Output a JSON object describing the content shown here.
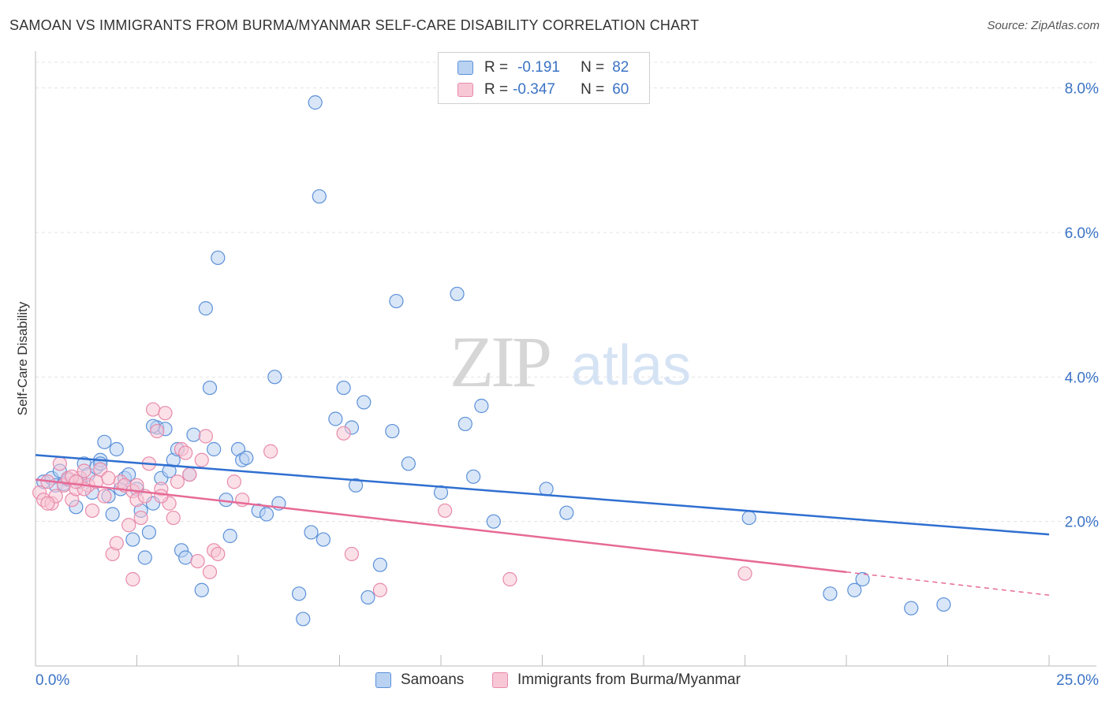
{
  "title": "SAMOAN VS IMMIGRANTS FROM BURMA/MYANMAR SELF-CARE DISABILITY CORRELATION CHART",
  "source": "Source: ZipAtlas.com",
  "watermark": {
    "zip": "ZIP",
    "atlas": "atlas"
  },
  "legend_stats": [
    {
      "r_label": "R =",
      "r_value": "-0.191",
      "n_label": "N =",
      "n_value": "82",
      "color": "#7aaae6"
    },
    {
      "r_label": "R =",
      "r_value": "-0.347",
      "n_label": "N =",
      "n_value": "60",
      "color": "#f0a0bb"
    }
  ],
  "colors": {
    "blue_fill": "#b9d2f2",
    "blue_stroke": "#5b90d8",
    "blue_line": "#2f6fd0",
    "pink_fill": "#f7c7d6",
    "pink_stroke": "#e88aaa",
    "pink_line": "#e66a96",
    "axis_text": "#3b73c5",
    "grid": "#e3e3e3"
  },
  "chart_data": {
    "type": "scatter",
    "title": "SAMOAN VS IMMIGRANTS FROM BURMA/MYANMAR SELF-CARE DISABILITY CORRELATION CHART",
    "xlabel": "",
    "ylabel": "Self-Care Disability",
    "xlim": [
      0,
      25
    ],
    "ylim": [
      0,
      8.4
    ],
    "x_tick_labels": [
      "0.0%",
      "25.0%"
    ],
    "y_ticks": [
      2,
      4,
      6,
      8
    ],
    "y_tick_labels": [
      "2.0%",
      "4.0%",
      "6.0%",
      "8.0%"
    ],
    "grid": true,
    "legend_position": "bottom",
    "series": [
      {
        "name": "Samoans",
        "color": "#5b90d8",
        "trend": {
          "x": [
            0,
            25
          ],
          "y": [
            2.92,
            1.82
          ]
        },
        "points": [
          [
            0.2,
            2.55
          ],
          [
            0.4,
            2.6
          ],
          [
            0.5,
            2.5
          ],
          [
            0.6,
            2.7
          ],
          [
            0.7,
            2.52
          ],
          [
            0.8,
            2.58
          ],
          [
            1.0,
            2.2
          ],
          [
            1.1,
            2.55
          ],
          [
            1.2,
            2.8
          ],
          [
            1.3,
            2.65
          ],
          [
            1.4,
            2.4
          ],
          [
            1.5,
            2.75
          ],
          [
            1.6,
            2.85
          ],
          [
            1.7,
            3.1
          ],
          [
            1.8,
            2.35
          ],
          [
            1.9,
            2.1
          ],
          [
            2.0,
            3.0
          ],
          [
            2.1,
            2.45
          ],
          [
            2.2,
            2.6
          ],
          [
            2.3,
            2.65
          ],
          [
            2.4,
            1.75
          ],
          [
            2.5,
            2.45
          ],
          [
            2.6,
            2.15
          ],
          [
            2.7,
            1.5
          ],
          [
            2.8,
            1.85
          ],
          [
            2.9,
            2.25
          ],
          [
            3.0,
            3.3
          ],
          [
            3.1,
            2.6
          ],
          [
            3.2,
            3.28
          ],
          [
            3.3,
            2.7
          ],
          [
            3.4,
            2.85
          ],
          [
            3.5,
            3.0
          ],
          [
            3.6,
            1.6
          ],
          [
            3.7,
            1.5
          ],
          [
            3.8,
            2.65
          ],
          [
            3.9,
            3.2
          ],
          [
            4.1,
            1.05
          ],
          [
            4.2,
            4.95
          ],
          [
            4.3,
            3.85
          ],
          [
            4.4,
            3.0
          ],
          [
            4.5,
            5.65
          ],
          [
            4.7,
            2.3
          ],
          [
            4.8,
            1.8
          ],
          [
            5.0,
            3.0
          ],
          [
            5.1,
            2.85
          ],
          [
            5.2,
            2.88
          ],
          [
            5.5,
            2.15
          ],
          [
            5.7,
            2.1
          ],
          [
            5.9,
            4.0
          ],
          [
            6.0,
            2.25
          ],
          [
            6.5,
            1.0
          ],
          [
            6.6,
            0.65
          ],
          [
            6.8,
            1.85
          ],
          [
            6.9,
            7.8
          ],
          [
            7.0,
            6.5
          ],
          [
            7.1,
            1.75
          ],
          [
            7.4,
            3.42
          ],
          [
            7.6,
            3.85
          ],
          [
            7.8,
            3.3
          ],
          [
            7.9,
            2.5
          ],
          [
            8.1,
            3.65
          ],
          [
            8.2,
            0.95
          ],
          [
            8.5,
            1.4
          ],
          [
            8.8,
            3.25
          ],
          [
            8.9,
            5.05
          ],
          [
            9.2,
            2.8
          ],
          [
            10.0,
            2.4
          ],
          [
            10.4,
            5.15
          ],
          [
            10.6,
            3.35
          ],
          [
            10.8,
            2.62
          ],
          [
            11.0,
            3.6
          ],
          [
            11.3,
            2.0
          ],
          [
            12.6,
            2.45
          ],
          [
            13.1,
            2.12
          ],
          [
            17.6,
            2.05
          ],
          [
            19.6,
            1.0
          ],
          [
            20.2,
            1.05
          ],
          [
            20.4,
            1.2
          ],
          [
            21.6,
            0.8
          ],
          [
            22.4,
            0.85
          ],
          [
            1.6,
            2.8
          ],
          [
            2.9,
            3.32
          ]
        ]
      },
      {
        "name": "Immigrants from Burma/Myanmar",
        "color": "#e88aaa",
        "trend": {
          "x": [
            0,
            20
          ],
          "y": [
            2.58,
            1.3
          ],
          "dashed_to": {
            "x": 25,
            "y": 0.98
          }
        },
        "points": [
          [
            0.1,
            2.4
          ],
          [
            0.2,
            2.3
          ],
          [
            0.3,
            2.55
          ],
          [
            0.4,
            2.25
          ],
          [
            0.5,
            2.35
          ],
          [
            0.6,
            2.8
          ],
          [
            0.7,
            2.5
          ],
          [
            0.8,
            2.6
          ],
          [
            0.9,
            2.3
          ],
          [
            1.0,
            2.45
          ],
          [
            1.1,
            2.6
          ],
          [
            1.2,
            2.7
          ],
          [
            1.3,
            2.5
          ],
          [
            1.4,
            2.15
          ],
          [
            1.5,
            2.55
          ],
          [
            1.6,
            2.72
          ],
          [
            1.7,
            2.35
          ],
          [
            1.8,
            2.6
          ],
          [
            1.9,
            1.55
          ],
          [
            2.0,
            1.7
          ],
          [
            2.1,
            2.55
          ],
          [
            2.2,
            2.5
          ],
          [
            2.3,
            1.95
          ],
          [
            2.4,
            2.42
          ],
          [
            2.5,
            2.3
          ],
          [
            2.6,
            2.05
          ],
          [
            2.7,
            2.35
          ],
          [
            2.8,
            2.8
          ],
          [
            2.9,
            3.55
          ],
          [
            3.0,
            3.25
          ],
          [
            3.1,
            2.45
          ],
          [
            3.2,
            3.5
          ],
          [
            3.3,
            2.25
          ],
          [
            3.4,
            2.05
          ],
          [
            3.5,
            2.55
          ],
          [
            3.6,
            3.0
          ],
          [
            3.7,
            2.95
          ],
          [
            3.8,
            2.65
          ],
          [
            4.0,
            1.45
          ],
          [
            4.1,
            2.85
          ],
          [
            4.2,
            3.18
          ],
          [
            4.3,
            1.3
          ],
          [
            4.4,
            1.6
          ],
          [
            4.5,
            1.55
          ],
          [
            4.9,
            2.55
          ],
          [
            5.1,
            2.3
          ],
          [
            5.8,
            2.97
          ],
          [
            7.6,
            3.22
          ],
          [
            7.8,
            1.55
          ],
          [
            8.5,
            1.05
          ],
          [
            10.1,
            2.15
          ],
          [
            11.7,
            1.2
          ],
          [
            17.5,
            1.28
          ],
          [
            2.4,
            1.2
          ],
          [
            1.2,
            2.45
          ],
          [
            0.9,
            2.62
          ],
          [
            0.3,
            2.25
          ],
          [
            2.5,
            2.5
          ],
          [
            3.1,
            2.35
          ],
          [
            1.0,
            2.55
          ]
        ]
      }
    ]
  },
  "bottom_legend": [
    {
      "label": "Samoans"
    },
    {
      "label": "Immigrants from Burma/Myanmar"
    }
  ]
}
